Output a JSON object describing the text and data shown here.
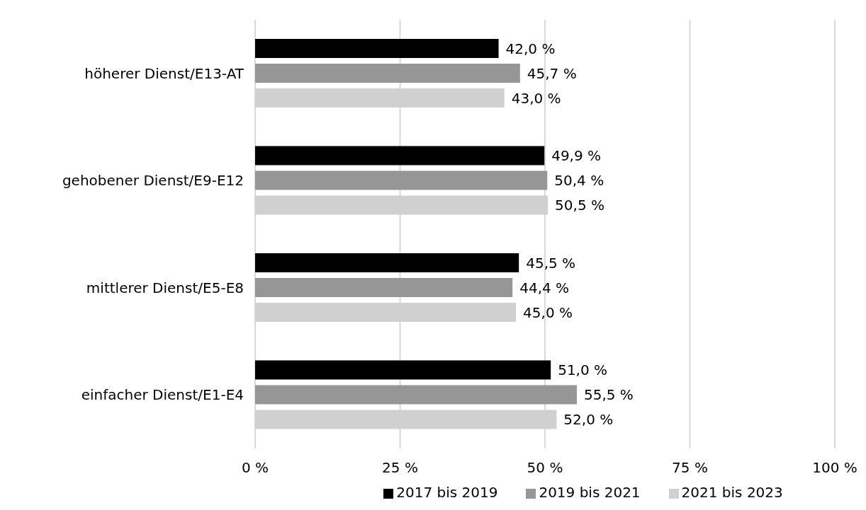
{
  "chart_data": {
    "type": "bar",
    "orientation": "horizontal",
    "categories": [
      "höherer Dienst/E13-AT",
      "gehobener Dienst/E9-E12",
      "mittlerer Dienst/E5-E8",
      "einfacher Dienst/E1-E4"
    ],
    "series": [
      {
        "name": "2017 bis 2019",
        "color": "#000000",
        "values": [
          42.0,
          49.9,
          45.5,
          51.0
        ],
        "value_labels": [
          "42,0 %",
          "49,9 %",
          "45,5 %",
          "51,0 %"
        ]
      },
      {
        "name": "2019 bis 2021",
        "color": "#969696",
        "values": [
          45.7,
          50.4,
          44.4,
          55.5
        ],
        "value_labels": [
          "45,7 %",
          "50,4 %",
          "44,4 %",
          "55,5 %"
        ]
      },
      {
        "name": "2021 bis 2023",
        "color": "#d0d0d0",
        "values": [
          43.0,
          50.5,
          45.0,
          52.0
        ],
        "value_labels": [
          "43,0 %",
          "50,5 %",
          "45,0 %",
          "52,0 %"
        ]
      }
    ],
    "xlim": [
      0,
      100
    ],
    "xticks": [
      {
        "value": 0,
        "label": "0 %"
      },
      {
        "value": 25,
        "label": "25 %"
      },
      {
        "value": 50,
        "label": "50 %"
      },
      {
        "value": 75,
        "label": "75 %"
      },
      {
        "value": 100,
        "label": "100 %"
      }
    ],
    "grid": "x",
    "legend": "bottom"
  }
}
